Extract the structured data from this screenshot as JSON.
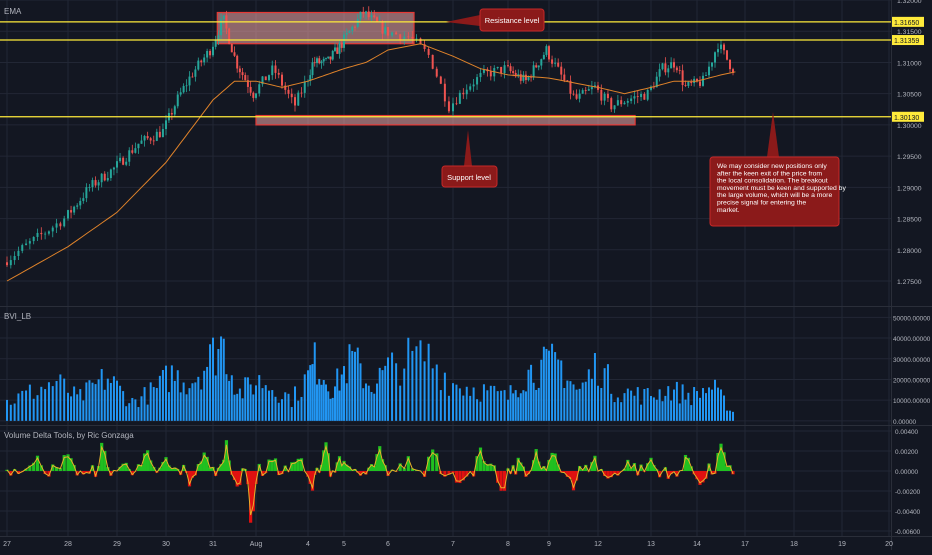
{
  "colors": {
    "background": "#131722",
    "grid": "#222735",
    "axis_text": "#b2b5be",
    "candle_up": "#26a69a",
    "candle_down": "#ef5350",
    "ema_line": "#e0832a",
    "level_line": "#ffeb3b",
    "zone_fill": "#f4a7a7",
    "zone_border": "#e53935",
    "callout_bg": "#8b1a1a",
    "bvi_bar": "#2196f3",
    "delta_up": "#20c020",
    "delta_down": "#e01010",
    "delta_line": "#e7b12a"
  },
  "chart_data": [
    {
      "type": "candlestick",
      "indicator_label": "EMA",
      "ylim": [
        1.271,
        1.32
      ],
      "yticks": [
        "1.32000",
        "1.31500",
        "1.31000",
        "1.30500",
        "1.30000",
        "1.29500",
        "1.29000",
        "1.28500",
        "1.28000",
        "1.27500"
      ],
      "xticks": [
        "27",
        "28",
        "29",
        "30",
        "31",
        "Aug",
        "4",
        "5",
        "6",
        "7",
        "8",
        "9",
        "12",
        "13",
        "14",
        "17",
        "18",
        "19",
        "20"
      ],
      "price_levels": [
        {
          "label": "1.31650",
          "value": 1.3165
        },
        {
          "label": "1.31359",
          "value": 1.31359
        },
        {
          "label": "1.30130",
          "value": 1.3013
        }
      ],
      "zones": [
        {
          "name": "resistance",
          "from_day": 4.1,
          "to_day": 8.4,
          "low": 1.313,
          "high": 1.318
        },
        {
          "name": "support",
          "from_day": 5.0,
          "to_day": 12.7,
          "low": 1.3,
          "high": 1.3015
        }
      ],
      "annotations": [
        {
          "text": "Resistance level"
        },
        {
          "text": "Support level"
        },
        {
          "text": "We may consider new positions only after the keen exit of the price from the local consolidation. The breakout movement must be keen and supported by the large volume, which will be a more precise signal for entering the market."
        }
      ],
      "anchors": [
        [
          0,
          1.278
        ],
        [
          1.0,
          1.285
        ],
        [
          1.5,
          1.29
        ],
        [
          2.0,
          1.293
        ],
        [
          2.5,
          1.297
        ],
        [
          3.0,
          1.299
        ],
        [
          3.3,
          1.304
        ],
        [
          3.6,
          1.308
        ],
        [
          4.0,
          1.312
        ],
        [
          4.3,
          1.317
        ],
        [
          4.6,
          1.31
        ],
        [
          5.0,
          1.305
        ],
        [
          5.4,
          1.309
        ],
        [
          5.8,
          1.303
        ],
        [
          6.2,
          1.31
        ],
        [
          6.6,
          1.31
        ],
        [
          7.0,
          1.313
        ],
        [
          7.5,
          1.318
        ],
        [
          8.0,
          1.315
        ],
        [
          8.4,
          1.314
        ],
        [
          8.7,
          1.311
        ],
        [
          9.0,
          1.303
        ],
        [
          9.3,
          1.306
        ],
        [
          9.6,
          1.308
        ],
        [
          10.0,
          1.309
        ],
        [
          10.5,
          1.307
        ],
        [
          11.0,
          1.312
        ],
        [
          11.3,
          1.308
        ],
        [
          11.6,
          1.304
        ],
        [
          12.0,
          1.306
        ],
        [
          12.3,
          1.303
        ],
        [
          12.6,
          1.304
        ],
        [
          13.0,
          1.305
        ],
        [
          13.3,
          1.309
        ],
        [
          13.6,
          1.31
        ],
        [
          13.8,
          1.306
        ],
        [
          14.2,
          1.307
        ],
        [
          14.5,
          1.313
        ],
        [
          14.8,
          1.309
        ]
      ],
      "ema": [
        [
          0,
          1.275
        ],
        [
          2.0,
          1.286
        ],
        [
          3.0,
          1.294
        ],
        [
          3.5,
          1.299
        ],
        [
          4.0,
          1.304
        ],
        [
          4.5,
          1.307
        ],
        [
          5.0,
          1.307
        ],
        [
          5.5,
          1.306
        ],
        [
          6.0,
          1.307
        ],
        [
          7.0,
          1.309
        ],
        [
          7.5,
          1.31
        ],
        [
          8.0,
          1.312
        ],
        [
          8.5,
          1.313
        ],
        [
          9.0,
          1.311
        ],
        [
          9.5,
          1.309
        ],
        [
          10.0,
          1.308
        ],
        [
          11.0,
          1.3075
        ],
        [
          12.0,
          1.306
        ],
        [
          12.5,
          1.305
        ],
        [
          13.0,
          1.306
        ],
        [
          13.5,
          1.307
        ],
        [
          14.0,
          1.307
        ],
        [
          14.5,
          1.308
        ],
        [
          14.8,
          1.3085
        ]
      ]
    },
    {
      "type": "bar",
      "indicator_label": "BVI_LB",
      "ylim": [
        -2000,
        55000
      ],
      "yticks": [
        "50000.00000",
        "40000.00000",
        "30000.00000",
        "20000.00000",
        "10000.00000",
        "0.00000"
      ],
      "peaks": [
        [
          0,
          12000
        ],
        [
          0.8,
          25000
        ],
        [
          1.2,
          14000
        ],
        [
          1.8,
          28000
        ],
        [
          2.3,
          12000
        ],
        [
          2.8,
          20000
        ],
        [
          3.1,
          30000
        ],
        [
          3.5,
          25000
        ],
        [
          3.9,
          38000
        ],
        [
          4.2,
          52000
        ],
        [
          4.6,
          18000
        ],
        [
          5.1,
          26000
        ],
        [
          5.7,
          14000
        ],
        [
          6.2,
          38000
        ],
        [
          6.7,
          20000
        ],
        [
          7.2,
          40000
        ],
        [
          7.6,
          22000
        ],
        [
          8.2,
          38000
        ],
        [
          8.6,
          42000
        ],
        [
          9.0,
          24000
        ],
        [
          9.5,
          20000
        ],
        [
          10.0,
          15000
        ],
        [
          10.4,
          30000
        ],
        [
          10.8,
          34000
        ],
        [
          11.2,
          38000
        ],
        [
          11.6,
          18000
        ],
        [
          12.0,
          37000
        ],
        [
          12.3,
          20000
        ],
        [
          12.9,
          16000
        ],
        [
          13.4,
          20000
        ],
        [
          13.9,
          16000
        ],
        [
          14.3,
          22000
        ],
        [
          14.8,
          4000
        ]
      ]
    },
    {
      "type": "area",
      "indicator_label": "Volume Delta Tools, by Ric Gonzaga",
      "ylim": [
        -0.0065,
        0.0045
      ],
      "yticks": [
        "0.00400",
        "0.00200",
        "0.00000",
        "-0.00200",
        "-0.00400",
        "-0.00600"
      ],
      "spikes": [
        [
          0.5,
          0.002
        ],
        [
          1.0,
          0.0022
        ],
        [
          1.4,
          -0.0008
        ],
        [
          1.7,
          0.0025
        ],
        [
          2.2,
          0.0012
        ],
        [
          2.6,
          0.0018
        ],
        [
          3.0,
          0.001
        ],
        [
          3.5,
          -0.0012
        ],
        [
          3.8,
          0.0022
        ],
        [
          4.3,
          0.003
        ],
        [
          4.6,
          -0.0018
        ],
        [
          4.9,
          -0.0058
        ],
        [
          5.3,
          0.0015
        ],
        [
          5.8,
          0.002
        ],
        [
          6.1,
          -0.0028
        ],
        [
          6.5,
          0.0035
        ],
        [
          6.9,
          0.0018
        ],
        [
          7.4,
          -0.001
        ],
        [
          7.8,
          0.0022
        ],
        [
          8.3,
          0.0012
        ],
        [
          8.7,
          0.003
        ],
        [
          9.1,
          -0.0022
        ],
        [
          9.5,
          0.0018
        ],
        [
          9.9,
          -0.003
        ],
        [
          10.3,
          0.001
        ],
        [
          10.7,
          0.0018
        ],
        [
          11.1,
          0.0022
        ],
        [
          11.5,
          -0.0018
        ],
        [
          11.9,
          0.0015
        ],
        [
          12.2,
          -0.0012
        ],
        [
          12.6,
          0.001
        ],
        [
          13.0,
          0.0012
        ],
        [
          13.4,
          -0.001
        ],
        [
          13.8,
          0.0015
        ],
        [
          14.1,
          -0.002
        ],
        [
          14.5,
          0.0025
        ],
        [
          14.8,
          -0.0005
        ]
      ]
    }
  ]
}
